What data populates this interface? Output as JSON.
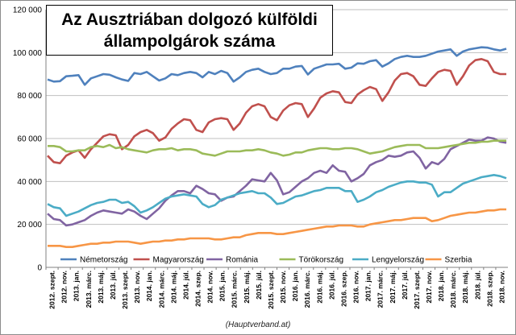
{
  "chart_data": {
    "type": "line",
    "title_line1": "Az Ausztriában dolgozó külföldi",
    "title_line2": "állampolgárok száma",
    "source": "(Hauptverband.at)",
    "ylim": [
      0,
      120000
    ],
    "yticks": [
      0,
      20000,
      40000,
      60000,
      80000,
      100000,
      120000
    ],
    "ytick_labels": [
      "0",
      "20 000",
      "40 000",
      "60 000",
      "80 000",
      "100 000",
      "120 000"
    ],
    "grid": true,
    "legend_position": "bottom",
    "xtick_labels": [
      "2012. szept.",
      "2012. nov.",
      "2013. jan.",
      "2013. márc.",
      "2013. máj.",
      "2013. júl.",
      "2013. szept.",
      "2013. nov.",
      "2014. jan.",
      "2014. márc.",
      "2014. máj.",
      "2014. júl.",
      "2014. szep.",
      "2014. nov.",
      "2015. jan.",
      "2015. márc.",
      "2015. máj.",
      "2015. júl.",
      "2015. szept.",
      "2015. nov.",
      "2016. jan.",
      "2016. márc.",
      "2016. máj.",
      "2016. júl.",
      "2016. szep.",
      "2016. nov.",
      "2017. jan.",
      "2017. márc.",
      "2017. máj.",
      "2017. júl.",
      "2017. szept.",
      "2017. nov.",
      "2018. jan.",
      "2018. márc.",
      "2018. máj.",
      "2018. júl.",
      "2018. szep.",
      "2018. nov."
    ],
    "series": [
      {
        "name": "Németország",
        "color": "#4f81bd",
        "values": [
          87500,
          86500,
          86700,
          89000,
          89200,
          89500,
          85000,
          88000,
          89000,
          90000,
          89700,
          88500,
          87500,
          86800,
          90500,
          90000,
          91000,
          89000,
          87000,
          88000,
          90000,
          89500,
          90500,
          91000,
          90500,
          88500,
          91000,
          90000,
          91500,
          90500,
          86500,
          88500,
          91000,
          92000,
          92500,
          91000,
          90000,
          90500,
          92500,
          92500,
          93500,
          93800,
          89800,
          92500,
          93500,
          94500,
          94500,
          94800,
          92500,
          93000,
          95000,
          94800,
          96000,
          96500,
          93500,
          95000,
          97000,
          98000,
          98500,
          98000,
          98000,
          98500,
          99500,
          100500,
          101000,
          101500,
          98500,
          100500,
          101500,
          102000,
          102500,
          102300,
          101500,
          101000,
          101800
        ]
      },
      {
        "name": "Magyarország",
        "color": "#c0504d",
        "values": [
          52000,
          49000,
          48500,
          52000,
          53500,
          54500,
          51000,
          55000,
          58000,
          61000,
          62000,
          61500,
          55000,
          57000,
          61000,
          63000,
          64000,
          62500,
          59000,
          60500,
          64500,
          67000,
          69000,
          68500,
          64000,
          63000,
          67500,
          69000,
          69500,
          69000,
          64000,
          67000,
          72000,
          75000,
          76000,
          75000,
          70000,
          68500,
          73000,
          75500,
          76500,
          76000,
          70000,
          74000,
          79000,
          81000,
          82000,
          81500,
          77000,
          76500,
          80500,
          82500,
          84000,
          83000,
          77500,
          81500,
          87000,
          90000,
          90500,
          89000,
          85000,
          84500,
          88000,
          91000,
          92000,
          91500,
          85000,
          89000,
          94000,
          96500,
          97000,
          96000,
          91000,
          90000,
          90000
        ]
      },
      {
        "name": "Románia",
        "color": "#8064a2",
        "values": [
          25000,
          22500,
          22000,
          19500,
          20000,
          21000,
          22000,
          24000,
          25500,
          26500,
          26000,
          25500,
          25000,
          27000,
          26000,
          24000,
          22500,
          25000,
          27500,
          31000,
          33500,
          35500,
          35500,
          34500,
          38000,
          36500,
          34500,
          34000,
          31000,
          32500,
          33000,
          35500,
          38000,
          41000,
          40500,
          40000,
          44000,
          40500,
          34000,
          35000,
          37500,
          40000,
          41500,
          44000,
          45000,
          44000,
          47500,
          45000,
          44500,
          40000,
          41500,
          43500,
          47500,
          49000,
          50000,
          52000,
          51500,
          52000,
          53500,
          54000,
          51000,
          46000,
          49000,
          48000,
          50500,
          55000,
          56500,
          58000,
          59500,
          59000,
          59000,
          60500,
          60000,
          58500,
          58000
        ]
      },
      {
        "name": "Törökország",
        "color": "#9bbb59",
        "values": [
          56500,
          56500,
          56000,
          54000,
          54000,
          54500,
          54500,
          56000,
          56500,
          56000,
          57000,
          55500,
          56000,
          55000,
          54500,
          54000,
          53500,
          54500,
          55000,
          55000,
          55500,
          54500,
          55000,
          55000,
          54500,
          53000,
          52500,
          52000,
          53000,
          54000,
          54000,
          54000,
          54500,
          54500,
          55000,
          54500,
          53500,
          53000,
          52000,
          52500,
          53500,
          53500,
          54500,
          55000,
          55500,
          55500,
          55000,
          55000,
          55500,
          55500,
          55000,
          54000,
          53000,
          53500,
          54000,
          55000,
          56000,
          56500,
          57000,
          57000,
          57000,
          55500,
          55500,
          55500,
          56000,
          56500,
          57000,
          57500,
          58000,
          58000,
          58500,
          58500,
          59000,
          59000,
          59000
        ]
      },
      {
        "name": "Lengyelország",
        "color": "#4bacc6",
        "values": [
          29500,
          28000,
          27500,
          24000,
          25000,
          26000,
          27500,
          29000,
          30000,
          30500,
          31500,
          31500,
          30000,
          30500,
          28500,
          25500,
          26500,
          28000,
          30000,
          32000,
          33000,
          33500,
          34000,
          33500,
          33000,
          29500,
          28000,
          29000,
          31500,
          32500,
          33500,
          34500,
          35000,
          35500,
          34500,
          34500,
          32500,
          29500,
          30000,
          31500,
          33000,
          33500,
          34500,
          35500,
          36000,
          37000,
          37000,
          37000,
          35500,
          35500,
          30500,
          31500,
          33000,
          35000,
          36000,
          37500,
          38500,
          39500,
          40000,
          40000,
          39500,
          39500,
          38500,
          33000,
          35000,
          35000,
          37000,
          39000,
          40000,
          41000,
          42000,
          42500,
          43000,
          42500,
          41500
        ]
      },
      {
        "name": "Szerbia",
        "color": "#f79646",
        "values": [
          10000,
          10000,
          10000,
          9500,
          9500,
          10000,
          10500,
          11000,
          11000,
          11500,
          11500,
          12000,
          12000,
          12000,
          11500,
          11000,
          11500,
          12000,
          12000,
          12500,
          12500,
          13000,
          13000,
          13500,
          13500,
          13500,
          13500,
          13000,
          13000,
          13500,
          14000,
          14000,
          15000,
          15500,
          16000,
          16000,
          16000,
          15500,
          15500,
          16000,
          16500,
          17000,
          17500,
          18000,
          18500,
          19000,
          19000,
          19500,
          19500,
          19500,
          19000,
          19000,
          20000,
          20500,
          21000,
          21500,
          22000,
          22000,
          22500,
          23000,
          23000,
          23000,
          21500,
          22000,
          23000,
          24000,
          24500,
          25000,
          25500,
          25500,
          26000,
          26500,
          26500,
          27000,
          27000
        ]
      }
    ]
  }
}
